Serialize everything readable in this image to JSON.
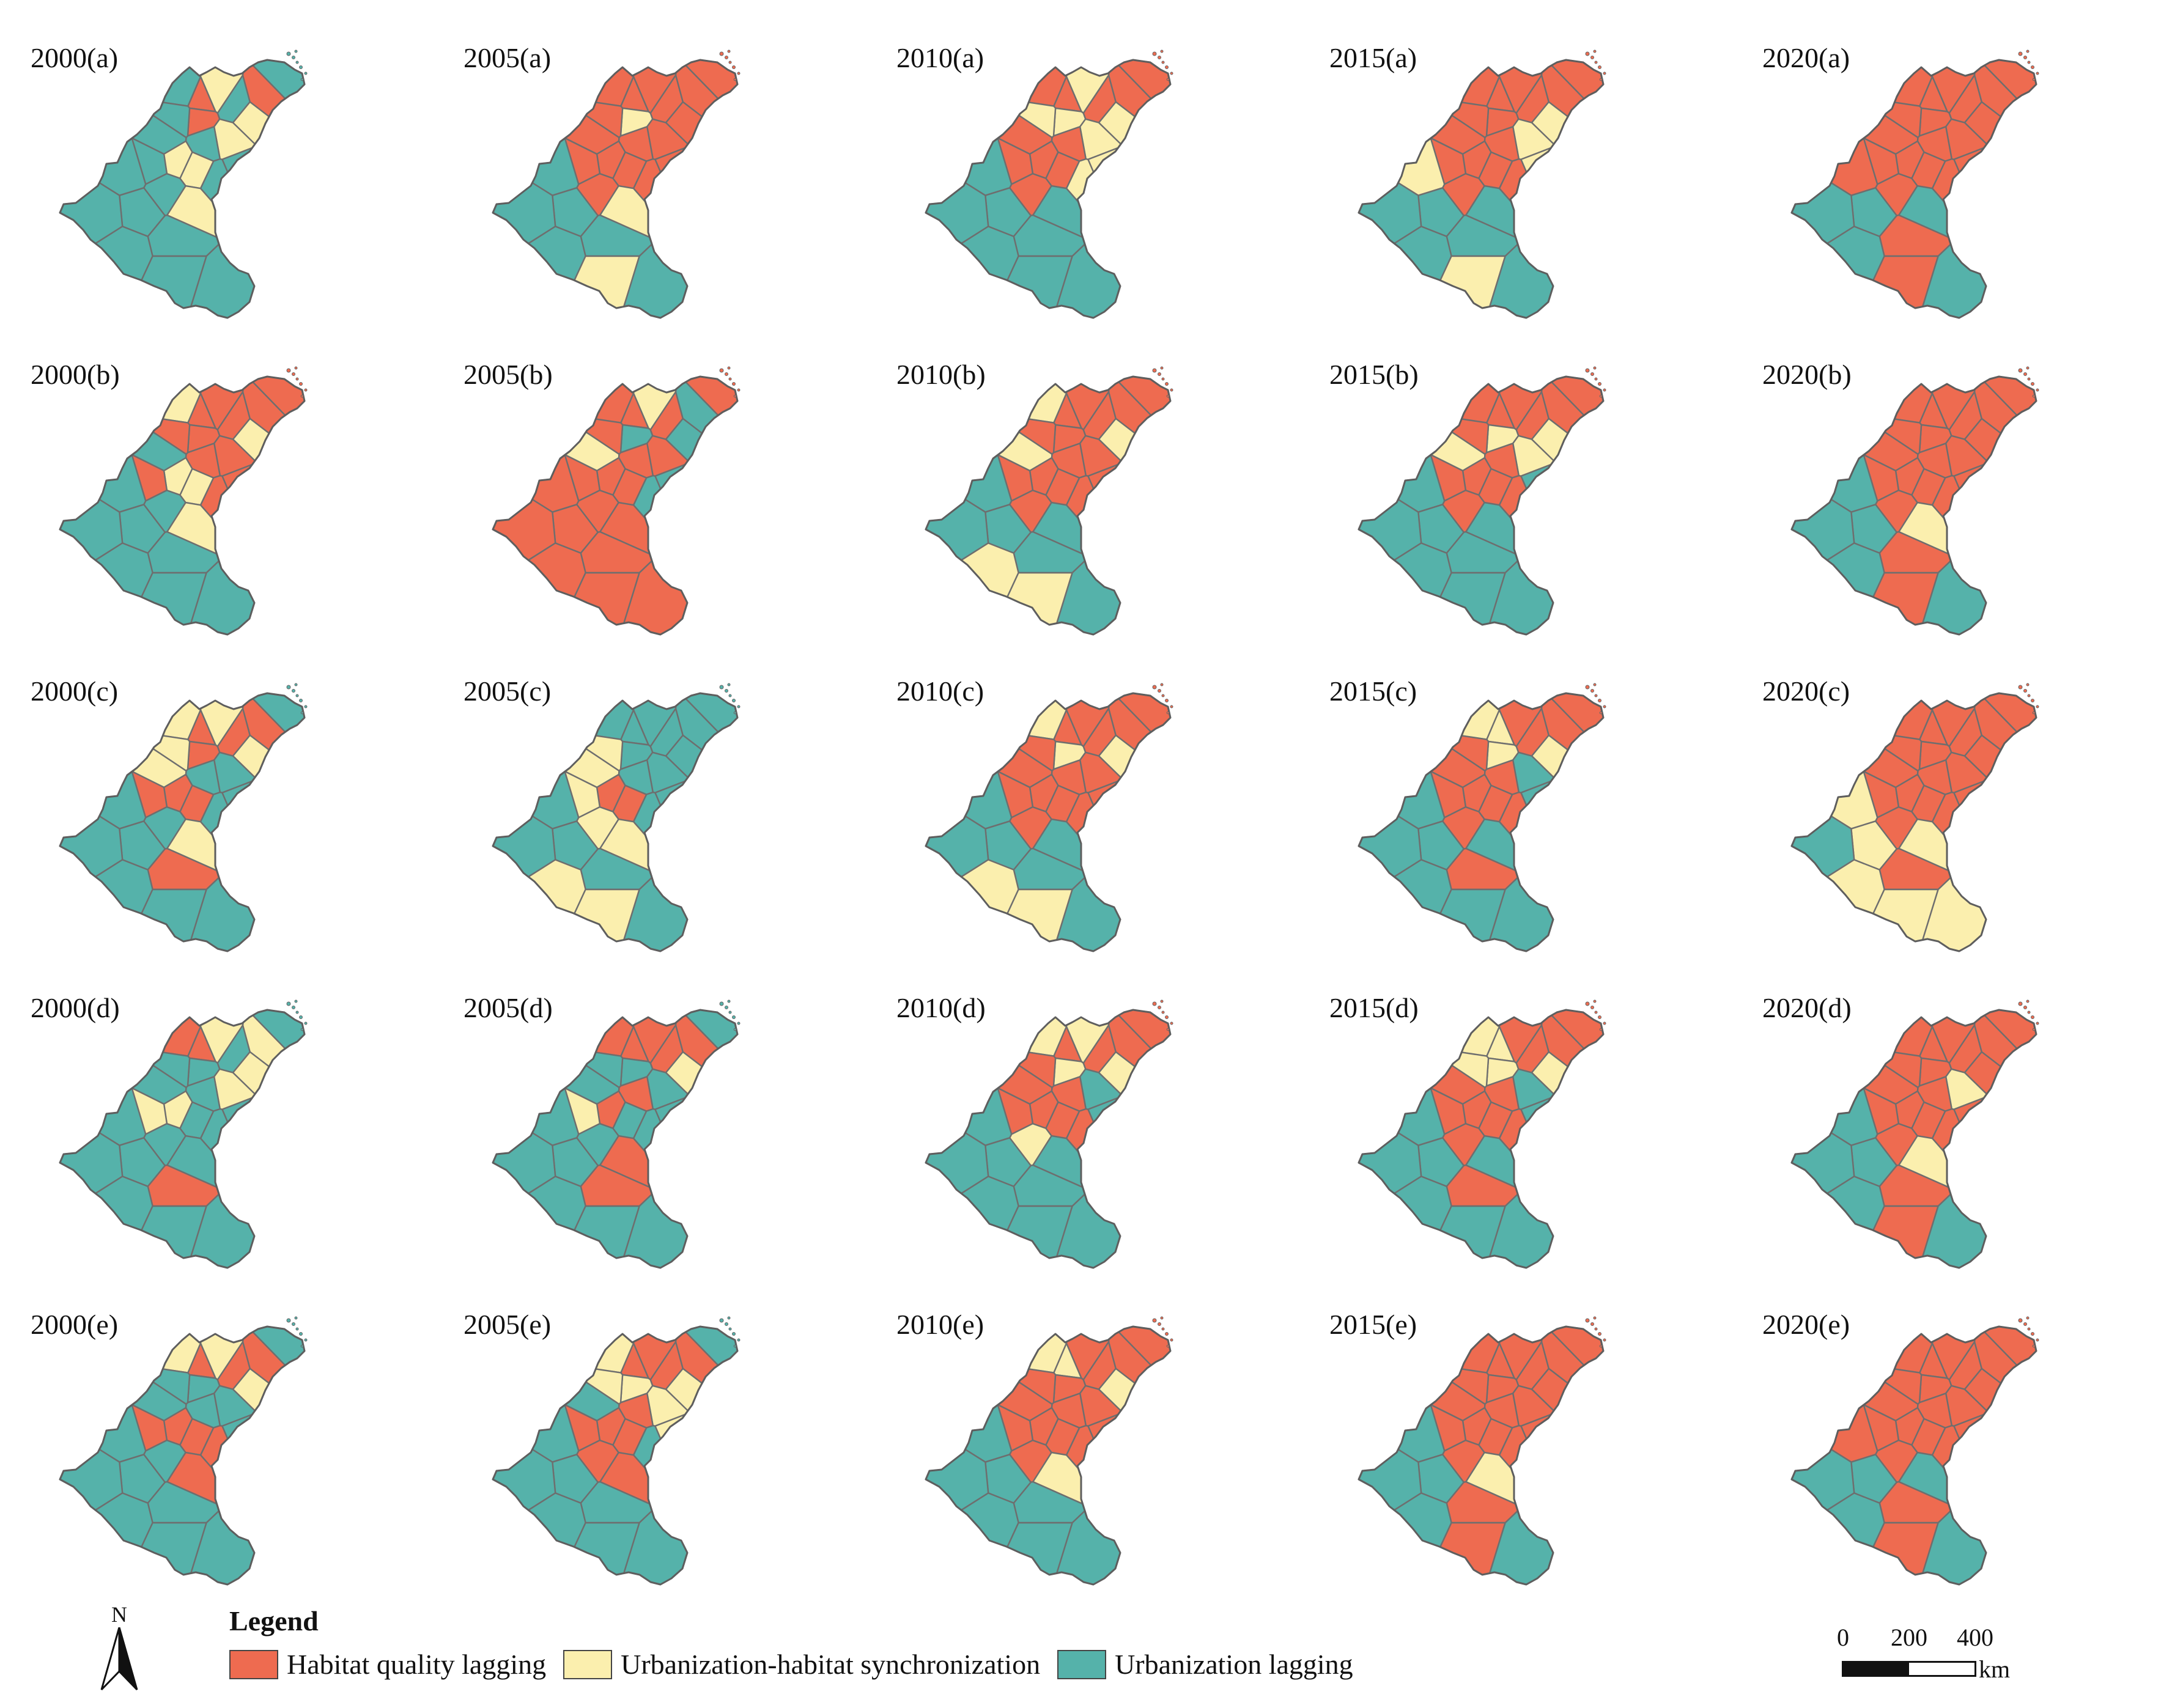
{
  "colors": {
    "habitat_quality_lagging": "#ee6b50",
    "synchronization": "#fbefae",
    "urbanization_lagging": "#55b2aa",
    "border": "#6e6e6e"
  },
  "panels": [
    {
      "label": "2000(a)",
      "year": "2000",
      "variant": "a",
      "regions": [
        "U",
        "H",
        "S",
        "U",
        "S",
        "H",
        "U",
        "H",
        "S",
        "U",
        "U",
        "U",
        "U",
        "U",
        "S",
        "S",
        "U",
        "U",
        "U",
        "S",
        "U",
        "U",
        "U",
        "U",
        "U",
        "U"
      ]
    },
    {
      "label": "2005(a)",
      "year": "2005",
      "variant": "a",
      "regions": [
        "H",
        "H",
        "H",
        "H",
        "H",
        "H",
        "H",
        "S",
        "H",
        "H",
        "H",
        "H",
        "H",
        "H",
        "H",
        "H",
        "H",
        "H",
        "U",
        "S",
        "U",
        "U",
        "U",
        "U",
        "S",
        "U"
      ]
    },
    {
      "label": "2010(a)",
      "year": "2010",
      "variant": "a",
      "regions": [
        "H",
        "H",
        "S",
        "H",
        "S",
        "H",
        "H",
        "S",
        "S",
        "S",
        "S",
        "H",
        "H",
        "S",
        "H",
        "H",
        "H",
        "H",
        "U",
        "U",
        "U",
        "U",
        "U",
        "U",
        "U",
        "U"
      ]
    },
    {
      "label": "2015(a)",
      "year": "2015",
      "variant": "a",
      "regions": [
        "H",
        "H",
        "S",
        "H",
        "H",
        "H",
        "H",
        "H",
        "S",
        "S",
        "H",
        "H",
        "H",
        "H",
        "H",
        "H",
        "H",
        "H",
        "S",
        "U",
        "U",
        "U",
        "U",
        "U",
        "S",
        "U"
      ]
    },
    {
      "label": "2020(a)",
      "year": "2020",
      "variant": "a",
      "regions": [
        "H",
        "H",
        "H",
        "H",
        "H",
        "H",
        "H",
        "H",
        "H",
        "H",
        "H",
        "H",
        "H",
        "H",
        "H",
        "H",
        "H",
        "H",
        "H",
        "U",
        "U",
        "U",
        "H",
        "U",
        "H",
        "U"
      ]
    },
    {
      "label": "2000(b)",
      "year": "2000",
      "variant": "b",
      "regions": [
        "H",
        "H",
        "S",
        "H",
        "H",
        "H",
        "S",
        "H",
        "H",
        "H",
        "H",
        "U",
        "H",
        "H",
        "S",
        "S",
        "H",
        "U",
        "U",
        "S",
        "U",
        "U",
        "U",
        "U",
        "U",
        "U"
      ]
    },
    {
      "label": "2005(b)",
      "year": "2005",
      "variant": "b",
      "regions": [
        "H",
        "U",
        "U",
        "H",
        "S",
        "H",
        "H",
        "U",
        "H",
        "U",
        "H",
        "S",
        "H",
        "U",
        "H",
        "H",
        "H",
        "H",
        "H",
        "H",
        "H",
        "H",
        "H",
        "H",
        "H",
        "H"
      ]
    },
    {
      "label": "2010(b)",
      "year": "2010",
      "variant": "b",
      "regions": [
        "H",
        "H",
        "S",
        "H",
        "H",
        "H",
        "S",
        "H",
        "H",
        "H",
        "H",
        "S",
        "H",
        "H",
        "H",
        "H",
        "H",
        "H",
        "U",
        "U",
        "U",
        "U",
        "U",
        "S",
        "S",
        "U"
      ]
    },
    {
      "label": "2015(b)",
      "year": "2015",
      "variant": "b",
      "regions": [
        "H",
        "H",
        "S",
        "H",
        "H",
        "H",
        "H",
        "S",
        "S",
        "U",
        "H",
        "S",
        "H",
        "H",
        "H",
        "H",
        "H",
        "H",
        "U",
        "U",
        "U",
        "U",
        "U",
        "U",
        "U",
        "U"
      ]
    },
    {
      "label": "2020(b)",
      "year": "2020",
      "variant": "b",
      "regions": [
        "H",
        "H",
        "H",
        "H",
        "H",
        "H",
        "H",
        "H",
        "H",
        "H",
        "H",
        "H",
        "H",
        "H",
        "H",
        "H",
        "H",
        "H",
        "U",
        "S",
        "U",
        "U",
        "H",
        "U",
        "H",
        "U"
      ]
    },
    {
      "label": "2000(c)",
      "year": "2000",
      "variant": "c",
      "regions": [
        "U",
        "H",
        "S",
        "H",
        "S",
        "H",
        "S",
        "H",
        "U",
        "U",
        "S",
        "S",
        "U",
        "U",
        "H",
        "H",
        "H",
        "U",
        "U",
        "S",
        "U",
        "U",
        "H",
        "U",
        "U",
        "U"
      ]
    },
    {
      "label": "2005(c)",
      "year": "2005",
      "variant": "c",
      "regions": [
        "U",
        "U",
        "U",
        "U",
        "U",
        "U",
        "U",
        "U",
        "U",
        "U",
        "S",
        "S",
        "U",
        "U",
        "H",
        "H",
        "S",
        "S",
        "U",
        "S",
        "U",
        "U",
        "U",
        "S",
        "S",
        "U"
      ]
    },
    {
      "label": "2010(c)",
      "year": "2010",
      "variant": "c",
      "regions": [
        "H",
        "H",
        "S",
        "H",
        "H",
        "H",
        "S",
        "S",
        "H",
        "H",
        "H",
        "H",
        "H",
        "H",
        "H",
        "H",
        "H",
        "H",
        "U",
        "U",
        "U",
        "U",
        "U",
        "S",
        "S",
        "U"
      ]
    },
    {
      "label": "2015(c)",
      "year": "2015",
      "variant": "c",
      "regions": [
        "H",
        "H",
        "S",
        "H",
        "H",
        "S",
        "S",
        "S",
        "U",
        "U",
        "H",
        "H",
        "H",
        "H",
        "H",
        "H",
        "H",
        "H",
        "U",
        "U",
        "U",
        "U",
        "H",
        "U",
        "U",
        "U"
      ]
    },
    {
      "label": "2020(c)",
      "year": "2020",
      "variant": "c",
      "regions": [
        "H",
        "H",
        "H",
        "H",
        "H",
        "H",
        "H",
        "H",
        "H",
        "H",
        "H",
        "H",
        "H",
        "H",
        "H",
        "H",
        "H",
        "H",
        "S",
        "S",
        "S",
        "U",
        "H",
        "S",
        "S",
        "S"
      ]
    },
    {
      "label": "2000(d)",
      "year": "2000",
      "variant": "d",
      "regions": [
        "U",
        "S",
        "S",
        "U",
        "S",
        "H",
        "H",
        "U",
        "S",
        "U",
        "U",
        "U",
        "U",
        "U",
        "U",
        "S",
        "S",
        "U",
        "U",
        "U",
        "U",
        "U",
        "H",
        "U",
        "U",
        "U"
      ]
    },
    {
      "label": "2005(d)",
      "year": "2005",
      "variant": "d",
      "regions": [
        "U",
        "H",
        "S",
        "H",
        "H",
        "H",
        "H",
        "U",
        "U",
        "U",
        "U",
        "U",
        "H",
        "U",
        "U",
        "H",
        "S",
        "U",
        "U",
        "H",
        "U",
        "U",
        "H",
        "U",
        "U",
        "U"
      ]
    },
    {
      "label": "2010(d)",
      "year": "2010",
      "variant": "d",
      "regions": [
        "H",
        "H",
        "S",
        "H",
        "S",
        "H",
        "S",
        "S",
        "U",
        "U",
        "H",
        "H",
        "H",
        "H",
        "H",
        "H",
        "H",
        "S",
        "U",
        "U",
        "U",
        "U",
        "U",
        "U",
        "U",
        "U"
      ]
    },
    {
      "label": "2015(d)",
      "year": "2015",
      "variant": "d",
      "regions": [
        "H",
        "H",
        "S",
        "H",
        "H",
        "S",
        "S",
        "S",
        "U",
        "U",
        "S",
        "H",
        "H",
        "H",
        "H",
        "H",
        "H",
        "H",
        "U",
        "U",
        "U",
        "U",
        "H",
        "U",
        "U",
        "U"
      ]
    },
    {
      "label": "2020(d)",
      "year": "2020",
      "variant": "d",
      "regions": [
        "H",
        "H",
        "H",
        "H",
        "H",
        "H",
        "H",
        "H",
        "S",
        "H",
        "H",
        "H",
        "H",
        "H",
        "H",
        "H",
        "H",
        "H",
        "U",
        "S",
        "U",
        "U",
        "H",
        "U",
        "H",
        "U"
      ]
    },
    {
      "label": "2000(e)",
      "year": "2000",
      "variant": "e",
      "regions": [
        "U",
        "H",
        "S",
        "H",
        "S",
        "H",
        "S",
        "U",
        "U",
        "U",
        "U",
        "U",
        "U",
        "H",
        "H",
        "H",
        "H",
        "U",
        "U",
        "H",
        "U",
        "U",
        "U",
        "U",
        "U",
        "U"
      ]
    },
    {
      "label": "2005(e)",
      "year": "2005",
      "variant": "e",
      "regions": [
        "U",
        "H",
        "S",
        "H",
        "H",
        "H",
        "S",
        "S",
        "S",
        "S",
        "S",
        "U",
        "H",
        "U",
        "H",
        "H",
        "H",
        "H",
        "U",
        "H",
        "U",
        "U",
        "U",
        "U",
        "U",
        "U"
      ]
    },
    {
      "label": "2010(e)",
      "year": "2010",
      "variant": "e",
      "regions": [
        "H",
        "H",
        "S",
        "H",
        "H",
        "S",
        "S",
        "H",
        "H",
        "H",
        "H",
        "H",
        "H",
        "H",
        "H",
        "H",
        "H",
        "H",
        "U",
        "S",
        "U",
        "U",
        "U",
        "U",
        "U",
        "U"
      ]
    },
    {
      "label": "2015(e)",
      "year": "2015",
      "variant": "e",
      "regions": [
        "H",
        "H",
        "H",
        "H",
        "H",
        "H",
        "H",
        "H",
        "H",
        "H",
        "H",
        "H",
        "H",
        "H",
        "H",
        "H",
        "H",
        "H",
        "U",
        "S",
        "U",
        "U",
        "H",
        "U",
        "H",
        "U"
      ]
    },
    {
      "label": "2020(e)",
      "year": "2020",
      "variant": "e",
      "regions": [
        "H",
        "H",
        "H",
        "H",
        "H",
        "H",
        "H",
        "H",
        "H",
        "H",
        "H",
        "H",
        "H",
        "H",
        "H",
        "H",
        "H",
        "H",
        "H",
        "U",
        "U",
        "U",
        "H",
        "U",
        "H",
        "U"
      ]
    }
  ],
  "legend": {
    "title": "Legend",
    "items": [
      {
        "key": "habitat_quality_lagging",
        "label": "Habitat quality lagging"
      },
      {
        "key": "synchronization",
        "label": "Urbanization-habitat synchronization"
      },
      {
        "key": "urbanization_lagging",
        "label": "Urbanization lagging"
      }
    ]
  },
  "north_arrow": {
    "letter": "N",
    "icon": "north-arrow-icon"
  },
  "scale_bar": {
    "ticks": [
      "0",
      "200",
      "400"
    ],
    "unit": "km"
  }
}
